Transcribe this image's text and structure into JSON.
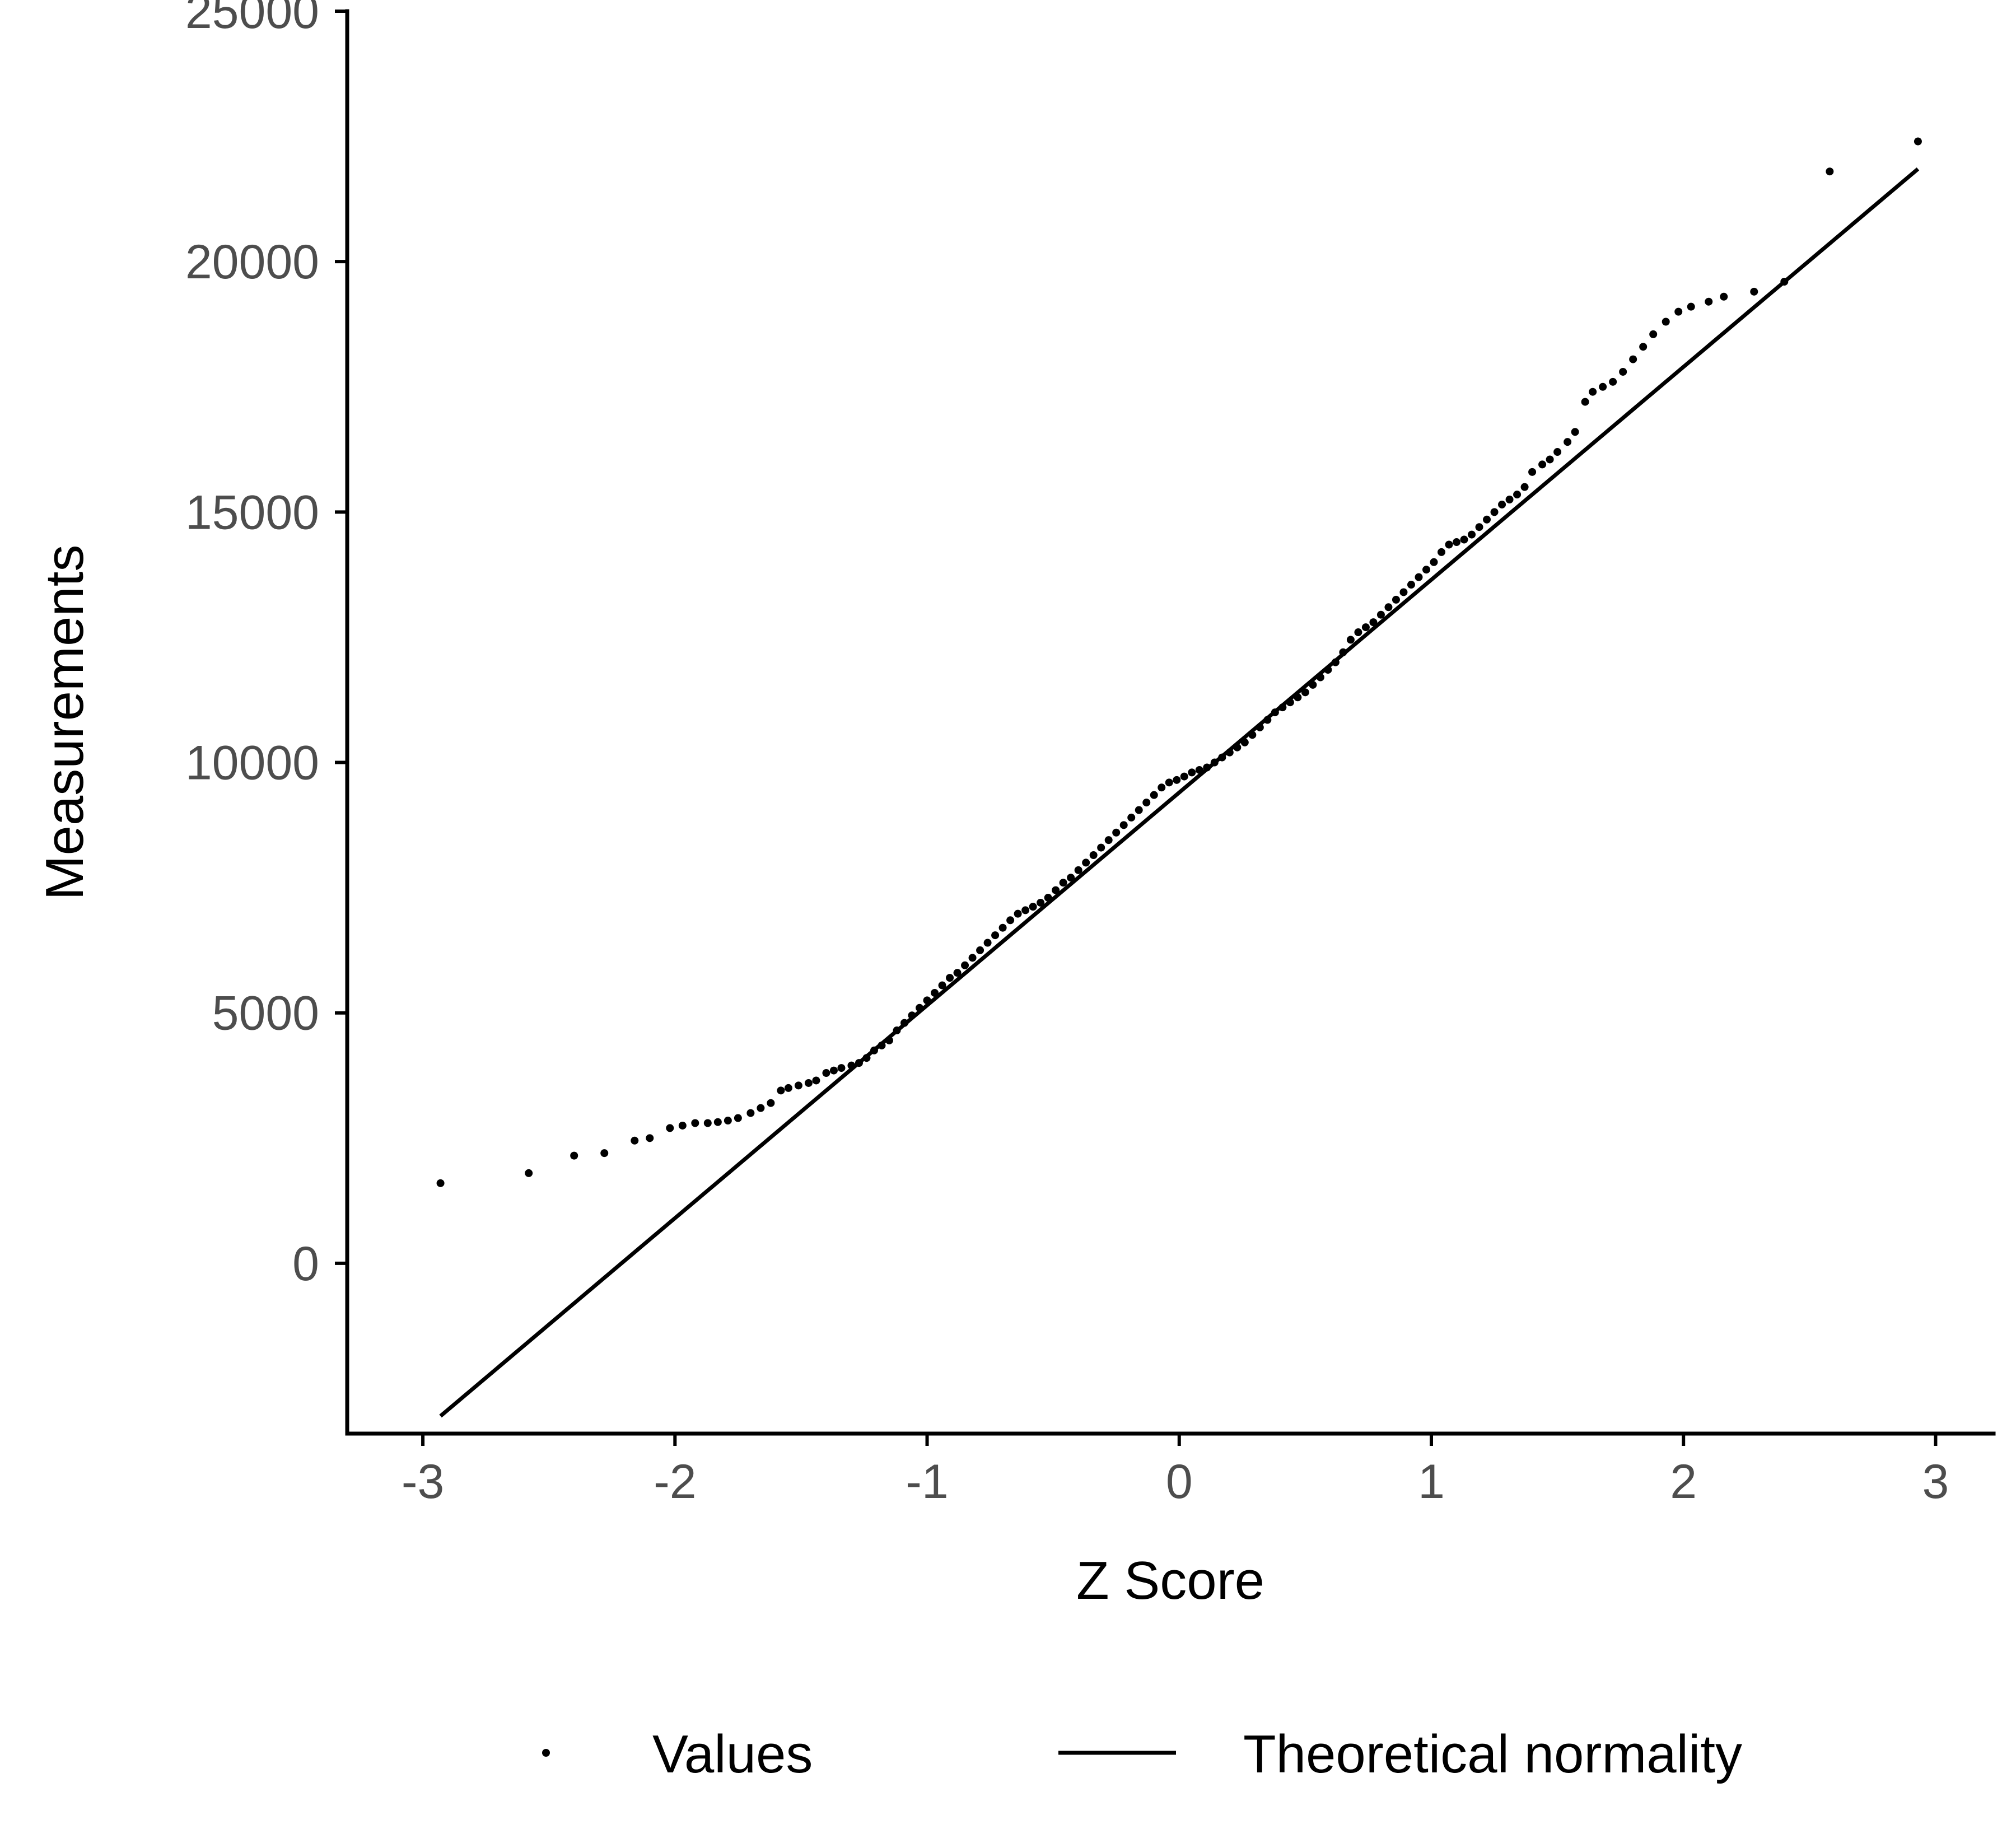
{
  "chart_data": {
    "type": "scatter",
    "title": "",
    "xlabel": "Z Score",
    "ylabel": "Measurements",
    "xlim": [
      -3.3,
      3.23
    ],
    "ylim": [
      -3400,
      25000
    ],
    "x_ticks": [
      -3,
      -2,
      -1,
      0,
      1,
      2,
      3
    ],
    "x_tick_labels": [
      "-3",
      "-2",
      "-1",
      "0",
      "1",
      "2",
      "3"
    ],
    "y_ticks": [
      0,
      5000,
      10000,
      15000,
      20000,
      25000
    ],
    "y_tick_labels": [
      "0",
      "5000",
      "10000",
      "15000",
      "20000",
      "25000"
    ],
    "grid": false,
    "legend_position": "bottom",
    "colors": {
      "points": "#000000",
      "line": "#000000",
      "ticks": "#4d4d4d"
    },
    "series": [
      {
        "name": "Values",
        "kind": "points",
        "x": [
          -2.93,
          -2.58,
          -2.4,
          -2.28,
          -2.16,
          -2.1,
          -2.02,
          -1.97,
          -1.92,
          -1.87,
          -1.83,
          -1.79,
          -1.75,
          -1.7,
          -1.66,
          -1.62,
          -1.58,
          -1.55,
          -1.51,
          -1.47,
          -1.44,
          -1.4,
          -1.37,
          -1.34,
          -1.3,
          -1.27,
          -1.24,
          -1.21,
          -1.18,
          -1.15,
          -1.12,
          -1.09,
          -1.06,
          -1.03,
          -1.0,
          -0.97,
          -0.94,
          -0.91,
          -0.88,
          -0.85,
          -0.82,
          -0.79,
          -0.76,
          -0.73,
          -0.7,
          -0.67,
          -0.64,
          -0.61,
          -0.58,
          -0.55,
          -0.52,
          -0.49,
          -0.46,
          -0.43,
          -0.4,
          -0.37,
          -0.34,
          -0.31,
          -0.28,
          -0.25,
          -0.22,
          -0.19,
          -0.16,
          -0.13,
          -0.1,
          -0.07,
          -0.04,
          -0.01,
          0.02,
          0.05,
          0.08,
          0.11,
          0.14,
          0.17,
          0.2,
          0.23,
          0.26,
          0.29,
          0.32,
          0.35,
          0.38,
          0.41,
          0.44,
          0.47,
          0.5,
          0.53,
          0.56,
          0.59,
          0.62,
          0.65,
          0.68,
          0.71,
          0.74,
          0.77,
          0.8,
          0.83,
          0.86,
          0.89,
          0.92,
          0.95,
          0.98,
          1.01,
          1.04,
          1.07,
          1.1,
          1.13,
          1.16,
          1.19,
          1.22,
          1.25,
          1.28,
          1.31,
          1.34,
          1.37,
          1.4,
          1.44,
          1.47,
          1.5,
          1.54,
          1.57,
          1.61,
          1.64,
          1.68,
          1.72,
          1.76,
          1.8,
          1.84,
          1.88,
          1.93,
          1.98,
          2.03,
          2.1,
          2.16,
          2.28,
          2.4,
          2.58,
          2.93
        ],
        "y": [
          1600,
          1800,
          2150,
          2200,
          2450,
          2500,
          2700,
          2750,
          2800,
          2800,
          2820,
          2850,
          2900,
          3000,
          3100,
          3200,
          3450,
          3500,
          3550,
          3600,
          3650,
          3800,
          3850,
          3900,
          3950,
          4000,
          4100,
          4250,
          4350,
          4450,
          4650,
          4800,
          4950,
          5100,
          5250,
          5400,
          5550,
          5700,
          5800,
          5950,
          6100,
          6250,
          6400,
          6550,
          6700,
          6850,
          6980,
          7050,
          7120,
          7200,
          7300,
          7450,
          7600,
          7700,
          7850,
          8000,
          8150,
          8300,
          8450,
          8600,
          8750,
          8900,
          9050,
          9200,
          9350,
          9500,
          9600,
          9650,
          9720,
          9800,
          9850,
          9900,
          10000,
          10100,
          10200,
          10300,
          10400,
          10550,
          10700,
          10850,
          11000,
          11100,
          11200,
          11300,
          11400,
          11550,
          11700,
          11850,
          12000,
          12200,
          12450,
          12600,
          12700,
          12800,
          12950,
          13100,
          13250,
          13400,
          13550,
          13700,
          13850,
          14000,
          14200,
          14350,
          14400,
          14450,
          14550,
          14700,
          14850,
          15000,
          15150,
          15250,
          15350,
          15500,
          15800,
          15950,
          16050,
          16200,
          16400,
          16600,
          17200,
          17400,
          17500,
          17600,
          17800,
          18050,
          18300,
          18550,
          18800,
          19000,
          19100,
          19200,
          19300,
          19400,
          19600,
          21800,
          22400
        ]
      },
      {
        "name": "Theoretical normality",
        "kind": "line",
        "x": [
          -2.93,
          2.93
        ],
        "y": [
          -3050,
          21850
        ]
      }
    ]
  }
}
